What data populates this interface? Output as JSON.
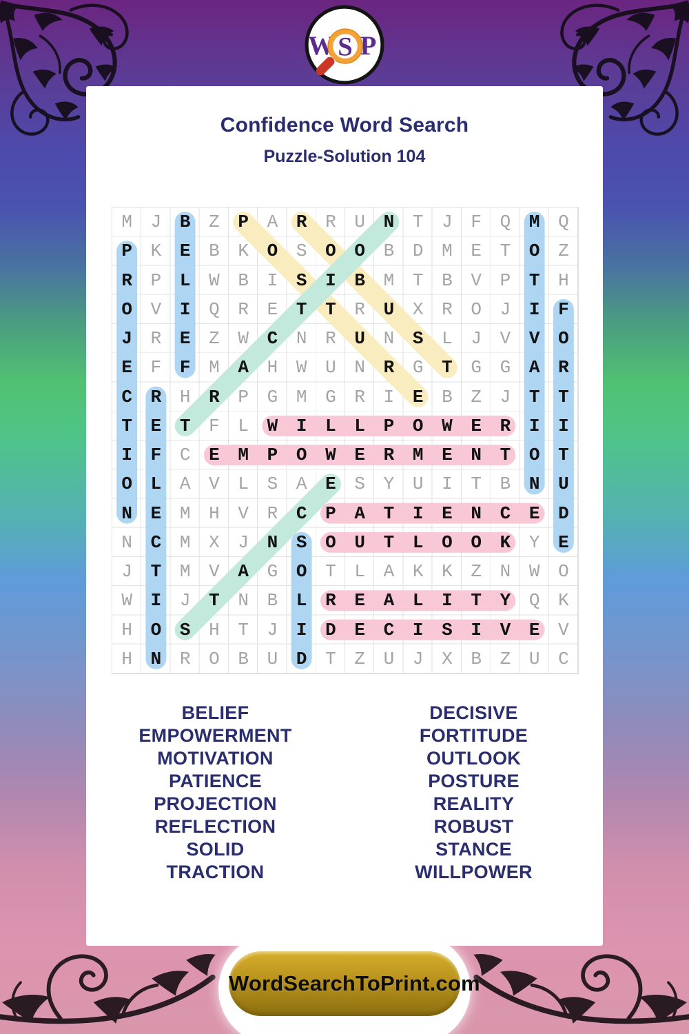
{
  "logo": {
    "letters": [
      "W",
      "S",
      "P"
    ]
  },
  "header": {
    "title": "Confidence Word Search",
    "subtitle": "Puzzle-Solution 104"
  },
  "grid": {
    "size": 16,
    "rows": [
      "MJBZPARRUNTJFQMQ",
      "PKEBKOSOOBDMETOZ",
      "RPLWBISIBMTBVPTH",
      "OVIQRETTRUXROJIF",
      "JREZWCNRUNSLJVVO",
      "EFFMAHWUNRGTGGAR",
      "CRHRPGMGRIEBZJTT",
      "TETFLWILLPOWERII",
      "IFCEMPOWERMENTOT",
      "OLAVLSAESYUITBNU",
      "NEMHVRCPATIENCED",
      "NCMXJNSOUTLOOKYE",
      "JTMVAGOTLAKKZNWO",
      "WIJTNBLREALITYQK",
      "HOSHTJIDECISIVEV",
      "HNROBUDTZUJXBZUC"
    ]
  },
  "highlight_colors": {
    "blue": "#aed5f2",
    "yellow": "#f9ecbe",
    "teal": "#c3e8dc",
    "pink": "#f9c8d7"
  },
  "solutions": [
    {
      "word": "BELIEF",
      "start": [
        1,
        3
      ],
      "end": [
        6,
        3
      ],
      "color": "blue"
    },
    {
      "word": "PROJECTION",
      "start": [
        2,
        1
      ],
      "end": [
        11,
        1
      ],
      "color": "blue"
    },
    {
      "word": "REFLECTION",
      "start": [
        7,
        2
      ],
      "end": [
        16,
        2
      ],
      "color": "blue"
    },
    {
      "word": "MOTIVATION",
      "start": [
        1,
        15
      ],
      "end": [
        10,
        15
      ],
      "color": "blue"
    },
    {
      "word": "FORTITUDE",
      "start": [
        4,
        16
      ],
      "end": [
        12,
        16
      ],
      "color": "blue"
    },
    {
      "word": "SOLID",
      "start": [
        12,
        7
      ],
      "end": [
        16,
        7
      ],
      "color": "blue"
    },
    {
      "word": "POSTURE",
      "start": [
        1,
        5
      ],
      "end": [
        7,
        11
      ],
      "color": "yellow"
    },
    {
      "word": "ROBUST",
      "start": [
        1,
        7
      ],
      "end": [
        6,
        12
      ],
      "color": "yellow"
    },
    {
      "word": "TRACTION",
      "start": [
        8,
        3
      ],
      "end": [
        1,
        10
      ],
      "color": "teal"
    },
    {
      "word": "STANCE",
      "start": [
        15,
        3
      ],
      "end": [
        10,
        8
      ],
      "color": "teal"
    },
    {
      "word": "WILLPOWER",
      "start": [
        8,
        6
      ],
      "end": [
        8,
        14
      ],
      "color": "pink"
    },
    {
      "word": "EMPOWERMENT",
      "start": [
        9,
        4
      ],
      "end": [
        9,
        14
      ],
      "color": "pink"
    },
    {
      "word": "PATIENCE",
      "start": [
        11,
        8
      ],
      "end": [
        11,
        15
      ],
      "color": "pink"
    },
    {
      "word": "OUTLOOK",
      "start": [
        12,
        8
      ],
      "end": [
        12,
        14
      ],
      "color": "pink"
    },
    {
      "word": "REALITY",
      "start": [
        14,
        8
      ],
      "end": [
        14,
        14
      ],
      "color": "pink"
    },
    {
      "word": "DECISIVE",
      "start": [
        15,
        8
      ],
      "end": [
        15,
        15
      ],
      "color": "pink"
    }
  ],
  "word_list": {
    "left": [
      "BELIEF",
      "EMPOWERMENT",
      "MOTIVATION",
      "PATIENCE",
      "PROJECTION",
      "REFLECTION",
      "SOLID",
      "TRACTION"
    ],
    "right": [
      "DECISIVE",
      "FORTITUDE",
      "OUTLOOK",
      "POSTURE",
      "REALITY",
      "ROBUST",
      "STANCE",
      "WILLPOWER"
    ]
  },
  "footer": {
    "site_label": "WordSearchToPrint.com"
  }
}
